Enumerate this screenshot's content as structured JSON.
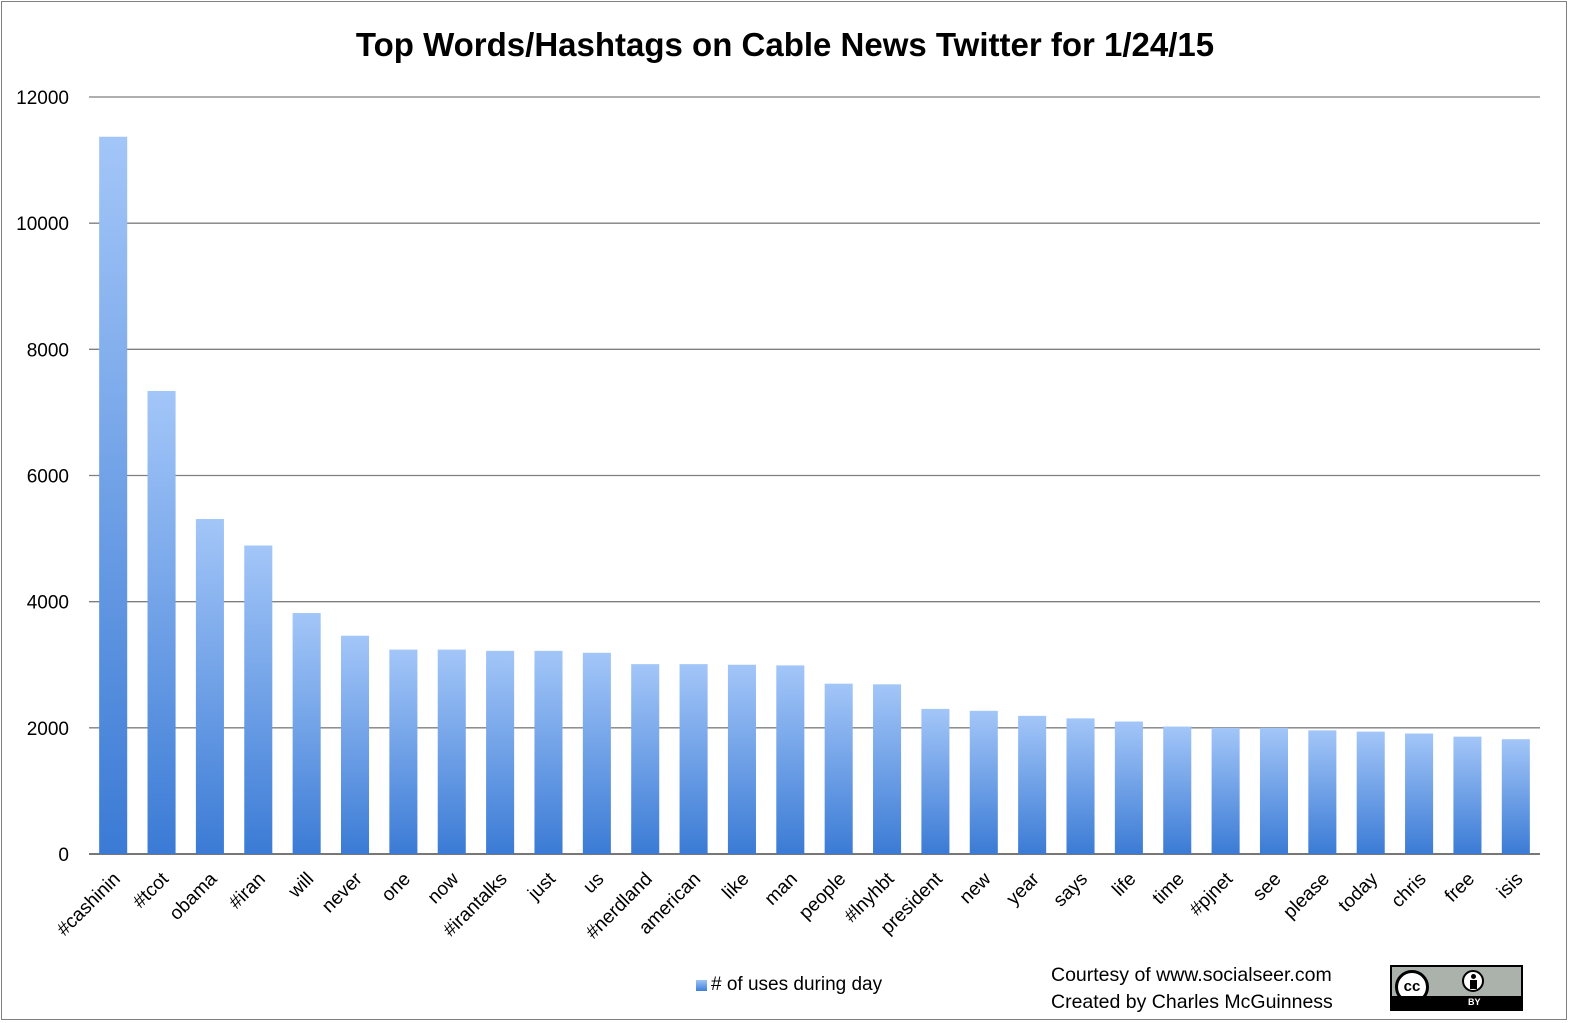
{
  "chart_data": {
    "type": "bar",
    "title": "Top Words/Hashtags on Cable News Twitter for 1/24/15",
    "categories": [
      "#cashinin",
      "#tcot",
      "obama",
      "#iran",
      "will",
      "never",
      "one",
      "now",
      "#irantalks",
      "just",
      "us",
      "#nerdland",
      "american",
      "like",
      "man",
      "people",
      "#lnyhbt",
      "president",
      "new",
      "year",
      "says",
      "life",
      "time",
      "#pjnet",
      "see",
      "please",
      "today",
      "chris",
      "free",
      "isis"
    ],
    "series": [
      {
        "name": "# of uses during day",
        "values": [
          11370,
          7340,
          5310,
          4890,
          3820,
          3460,
          3240,
          3240,
          3220,
          3220,
          3190,
          3010,
          3010,
          3000,
          2990,
          2700,
          2690,
          2300,
          2270,
          2190,
          2150,
          2100,
          2020,
          2000,
          2000,
          1960,
          1940,
          1910,
          1860,
          1820
        ]
      }
    ],
    "yticks": [
      0,
      2000,
      4000,
      6000,
      8000,
      10000,
      12000
    ],
    "ylim": [
      0,
      12000
    ],
    "grid": true,
    "legend": "bottom",
    "colors": {
      "bar_top": "#a3c6f8",
      "bar_bottom": "#3b7bd5",
      "grid": "#7f7f7f"
    }
  },
  "credit": {
    "line1": "Courtesy of www.socialseer.com",
    "line2": "Created by Charles McGuinness"
  },
  "license_badge": {
    "cc": "cc",
    "by": "BY"
  }
}
